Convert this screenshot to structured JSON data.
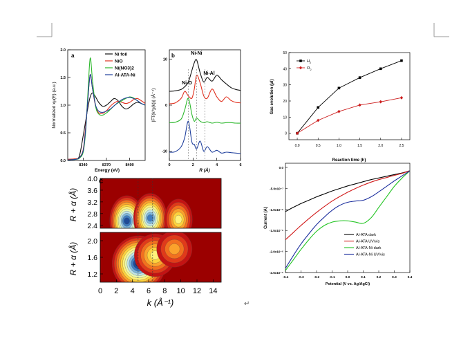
{
  "page": {
    "return_mark": "↵"
  },
  "colors": {
    "black": "#111111",
    "red": "#e0301e",
    "green": "#2db82d",
    "blue": "#1f3f9c",
    "ha": "#000000",
    "hb": "#cc1d1d",
    "ox": "#cc1d1d",
    "oxmark": "#cc1d1d"
  },
  "chart_data": [
    {
      "id": "xanes",
      "type": "line",
      "panel_label": "a",
      "xlabel": "Energy (eV)",
      "ylabel": "Normalized xμ(E) (a.u.)",
      "xlim": [
        8320,
        8420
      ],
      "ylim": [
        0.0,
        2.0
      ],
      "x_ticks": [
        8340,
        8370,
        8400
      ],
      "y_ticks": [
        0.0,
        0.5,
        1.0,
        1.5,
        2.0
      ],
      "y_tick_labels": [
        "0.0",
        "0.5",
        "1.0",
        "1.5",
        "2.0"
      ],
      "x": [
        8320,
        8330,
        8335,
        8340,
        8343,
        8346,
        8349,
        8352,
        8356,
        8360,
        8365,
        8370,
        8375,
        8380,
        8385,
        8390,
        8395,
        8400,
        8405,
        8410,
        8415,
        8420
      ],
      "series": [
        {
          "name": "Ni foil",
          "color": "#111111",
          "values": [
            0.02,
            0.03,
            0.08,
            0.45,
            0.7,
            0.95,
            1.15,
            1.22,
            1.15,
            1.05,
            0.98,
            1.0,
            1.06,
            1.12,
            1.08,
            0.98,
            0.93,
            0.96,
            1.02,
            1.05,
            1.03,
            1.0
          ]
        },
        {
          "name": "NiO",
          "color": "#e0301e",
          "values": [
            0.02,
            0.03,
            0.05,
            0.2,
            0.6,
            1.1,
            1.55,
            1.3,
            0.98,
            0.86,
            0.85,
            0.9,
            0.98,
            1.04,
            1.07,
            1.05,
            1.03,
            1.05,
            1.1,
            1.12,
            1.08,
            1.03
          ]
        },
        {
          "name": "Ni(NO3)2",
          "color": "#2db82d",
          "values": [
            0.01,
            0.02,
            0.04,
            0.15,
            0.5,
            1.2,
            1.85,
            1.45,
            0.98,
            0.84,
            0.82,
            0.86,
            0.92,
            0.99,
            1.04,
            1.08,
            1.12,
            1.15,
            1.13,
            1.08,
            1.03,
            1.0
          ]
        },
        {
          "name": "Al-ATA-Ni",
          "color": "#1f3f9c",
          "values": [
            0.01,
            0.02,
            0.05,
            0.18,
            0.55,
            1.1,
            1.55,
            1.3,
            1.0,
            0.89,
            0.87,
            0.89,
            0.93,
            0.99,
            1.05,
            1.1,
            1.13,
            1.14,
            1.12,
            1.08,
            1.03,
            1.0
          ]
        }
      ]
    },
    {
      "id": "exafs",
      "type": "line",
      "panel_label": "b",
      "xlabel": "R (Å)",
      "ylabel": "|FT(k³χ(k))| (Å⁻⁴)",
      "xlim": [
        0,
        6
      ],
      "ylim": [
        -12,
        12
      ],
      "x_ticks": [
        0,
        2,
        4,
        6
      ],
      "y_ticks": [
        -10,
        0,
        10
      ],
      "annotations": [
        {
          "text": "Ni-Ni",
          "x": 2.3
        },
        {
          "text": "Ni-O",
          "x": 1.6
        },
        {
          "text": "Ni-Al",
          "x": 3.0
        }
      ],
      "dashed_x": [
        1.6,
        2.3,
        3.0
      ],
      "x": [
        0,
        0.5,
        1.0,
        1.3,
        1.6,
        1.9,
        2.1,
        2.3,
        2.6,
        2.9,
        3.2,
        3.6,
        4.0,
        4.4,
        4.8,
        5.2,
        5.6,
        6.0
      ],
      "series": [
        {
          "name": "Ni foil",
          "color": "#111111",
          "values": [
            3.0,
            3.1,
            3.4,
            4.0,
            5.0,
            7.5,
            9.2,
            9.8,
            7.0,
            5.0,
            6.0,
            5.2,
            6.5,
            5.5,
            4.6,
            3.8,
            3.4,
            3.2
          ]
        },
        {
          "name": "NiO",
          "color": "#e0301e",
          "values": [
            0.3,
            0.5,
            1.5,
            3.0,
            2.0,
            1.5,
            3.5,
            6.5,
            4.8,
            2.0,
            1.5,
            3.5,
            1.8,
            0.8,
            1.8,
            1.0,
            0.6,
            0.5
          ]
        },
        {
          "name": "Ni(NO3)2",
          "color": "#2db82d",
          "values": [
            -3.8,
            -3.7,
            -3.0,
            -1.0,
            1.5,
            -2.0,
            -3.5,
            -2.8,
            -3.5,
            -3.8,
            -3.6,
            -3.9,
            -3.7,
            -3.9,
            -3.8,
            -3.8,
            -3.9,
            -3.9
          ]
        },
        {
          "name": "Al-ATA-Ni",
          "color": "#1f3f9c",
          "values": [
            -10.2,
            -10.1,
            -9.0,
            -7.0,
            -3.5,
            -8.0,
            -8.5,
            -9.5,
            -7.8,
            -10.0,
            -9.0,
            -10.2,
            -9.8,
            -10.4,
            -10.2,
            -10.3,
            -10.4,
            -10.5
          ]
        }
      ]
    },
    {
      "id": "wavelet",
      "type": "heatmap",
      "panel_label": "c",
      "xlabel": "k (Å⁻¹)",
      "ylabel": "R + α (Å)",
      "xlim": [
        0,
        15
      ],
      "x_ticks": [
        0,
        2,
        4,
        6,
        8,
        10,
        12,
        14
      ],
      "top": {
        "ylim": [
          2.3,
          4.0
        ],
        "y_ticks": [
          2.4,
          2.8,
          3.2,
          3.6,
          4.0
        ],
        "y_tick_labels": [
          "2.4",
          "2.8",
          "3.2",
          "3.6",
          "4.0"
        ]
      },
      "bottom": {
        "ylim": [
          1.0,
          2.2
        ],
        "y_ticks": [
          1.2,
          1.6,
          2.0
        ],
        "y_tick_labels": [
          "1.2",
          "1.6",
          "2.0"
        ]
      },
      "dashed_k": [
        4.7,
        6.5
      ],
      "peaks_top": [
        {
          "k": 3.3,
          "r": 2.55,
          "amp": 0.9
        },
        {
          "k": 6.2,
          "r": 2.65,
          "amp": 0.85
        },
        {
          "k": 9.7,
          "r": 2.6,
          "amp": 0.55
        }
      ],
      "peaks_bottom": [
        {
          "k": 4.8,
          "r": 1.45,
          "amp": 1.0
        },
        {
          "k": 6.8,
          "r": 1.65,
          "amp": 0.55
        },
        {
          "k": 9.2,
          "r": 1.8,
          "amp": 0.35
        }
      ]
    },
    {
      "id": "gas-evolution",
      "type": "line",
      "xlabel": "Reaction time (h)",
      "ylabel": "Gas evolution (μl)",
      "xlim": [
        -0.2,
        2.7
      ],
      "ylim": [
        -4,
        50
      ],
      "x_ticks": [
        0.0,
        0.5,
        1.0,
        1.5,
        2.0,
        2.5
      ],
      "x_tick_labels": [
        "0.0",
        "0.5",
        "1.0",
        "1.5",
        "2.0",
        "2.5"
      ],
      "y_ticks": [
        0,
        10,
        20,
        30,
        40,
        50
      ],
      "x": [
        0.0,
        0.5,
        1.0,
        1.5,
        2.0,
        2.5
      ],
      "legend": {
        "h2": "H",
        "h2_sub": "2",
        "o2": "O",
        "o2_sub": "2"
      },
      "series": [
        {
          "name": "H2",
          "color": "#000000",
          "marker": "square",
          "values": [
            0,
            16,
            28,
            34.5,
            40,
            45
          ]
        },
        {
          "name": "O2",
          "color": "#cc1d1d",
          "marker": "diamond",
          "values": [
            0,
            8,
            13.5,
            17.5,
            19.5,
            22
          ]
        }
      ]
    },
    {
      "id": "photocurrent",
      "type": "line",
      "xlabel": "Potential (V vs. Ag/AgCl)",
      "ylabel": "Current (A)",
      "xlim": [
        -0.4,
        0.4
      ],
      "ylim": [
        -2.5e-06,
        1e-07
      ],
      "x_ticks": [
        -0.4,
        -0.3,
        -0.2,
        -0.1,
        0.0,
        0.1,
        0.2,
        0.3,
        0.4
      ],
      "x_tick_labels": [
        "-0.4",
        "-0.3",
        "-0.2",
        "-0.1",
        "0.0",
        "0.1",
        "0.2",
        "0.3",
        "0.4"
      ],
      "y_ticks": [
        0,
        -5e-07,
        -1e-06,
        -1.5e-06,
        -2e-06,
        -2.5e-06
      ],
      "y_tick_labels": [
        "0.0",
        "-5.0x10⁻⁷",
        "-1.0x10⁻⁶",
        "-1.5x10⁻⁶",
        "-2.0x10⁻⁶",
        "-2.5x10⁻⁶"
      ],
      "x": [
        -0.4,
        -0.35,
        -0.3,
        -0.25,
        -0.2,
        -0.15,
        -0.1,
        -0.05,
        0.0,
        0.05,
        0.1,
        0.15,
        0.2,
        0.25,
        0.3,
        0.35,
        0.4
      ],
      "series": [
        {
          "name": "Al-ATA dark",
          "color": "#000000",
          "values": [
            -1.05e-06,
            -9.5e-07,
            -8.6e-07,
            -7.8e-07,
            -7e-07,
            -6.3e-07,
            -5.6e-07,
            -5e-07,
            -4.4e-07,
            -3.9e-07,
            -3.4e-07,
            -2.9e-07,
            -2.5e-07,
            -2.1e-07,
            -1.7e-07,
            -1.3e-07,
            -8e-08
          ]
        },
        {
          "name": "Al-ATA UV/vis",
          "color": "#d11a1a",
          "values": [
            -1.72e-06,
            -1.55e-06,
            -1.38e-06,
            -1.22e-06,
            -1.07e-06,
            -9.3e-07,
            -8e-07,
            -6.9e-07,
            -5.9e-07,
            -5e-07,
            -4.2e-07,
            -3.5e-07,
            -2.9e-07,
            -2.4e-07,
            -1.9e-07,
            -1.4e-07,
            -8e-08
          ]
        },
        {
          "name": "Al-ATA-Ni dark",
          "color": "#22c422",
          "values": [
            -2.45e-06,
            -2.2e-06,
            -1.95e-06,
            -1.72e-06,
            -1.52e-06,
            -1.38e-06,
            -1.3e-06,
            -1.27e-06,
            -1.27e-06,
            -1.3e-06,
            -1.33e-06,
            -1.2e-06,
            -9.5e-07,
            -7e-07,
            -4.5e-07,
            -2.5e-07,
            -8e-08
          ]
        },
        {
          "name": "Al-ATA-Ni UV/vis",
          "color": "#1c2f9e",
          "values": [
            -2.4e-06,
            -2.1e-06,
            -1.82e-06,
            -1.58e-06,
            -1.36e-06,
            -1.18e-06,
            -1.02e-06,
            -9e-07,
            -8.3e-07,
            -8e-07,
            -7.8e-07,
            -7e-07,
            -5.8e-07,
            -4.5e-07,
            -3.2e-07,
            -2e-07,
            -8e-08
          ]
        }
      ]
    }
  ]
}
